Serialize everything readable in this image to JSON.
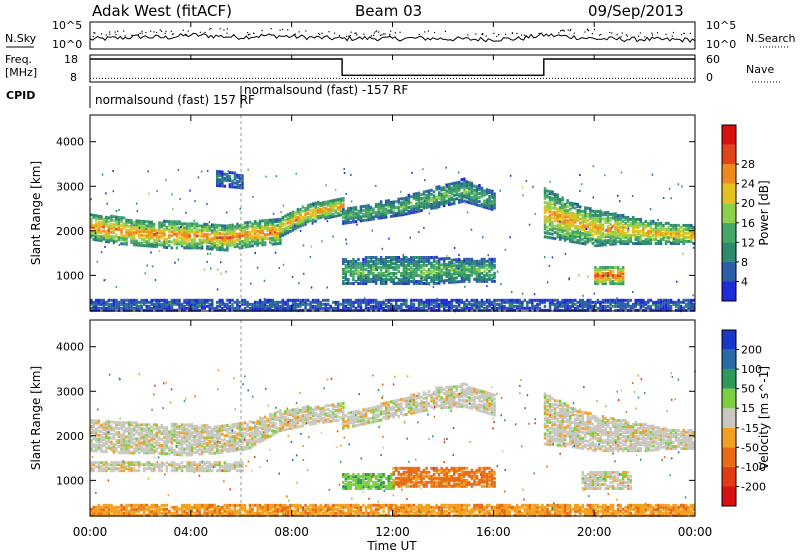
{
  "header": {
    "station": "Adak West (fitACF)",
    "beam": "Beam 03",
    "date": "09/Sep/2013"
  },
  "noise_panel": {
    "left_label": "N.Sky",
    "right_label": "N.Search",
    "left_ticks": [
      "10^5",
      "10^0"
    ],
    "right_ticks": [
      "10^5",
      "10^0"
    ]
  },
  "freq_panel": {
    "left_label_1": "Freq.",
    "left_label_2": "[MHz]",
    "left_ticks": [
      "18",
      "8"
    ],
    "right_label": "Nave",
    "right_ticks": [
      "60",
      "0"
    ]
  },
  "cpid": {
    "label": "CPID",
    "mode_1": "normalsound (fast) 157 RF",
    "mode_2": "normalsound (fast) -157 RF"
  },
  "colors": {
    "power": [
      "#1f2bd8",
      "#2a5fa8",
      "#2d8a6a",
      "#46a867",
      "#8fd04a",
      "#e6c020",
      "#f08a1c",
      "#e0441a",
      "#d81010"
    ],
    "velocity": [
      "#1838c8",
      "#2a6aa8",
      "#2e9a5a",
      "#7cd040",
      "#c8c8c0",
      "#f2a020",
      "#e86a14",
      "#e23a14",
      "#d81010"
    ],
    "noise_line": "#000000"
  },
  "chart_data": [
    {
      "type": "line",
      "title": "N.Sky / N.Search",
      "x_range_hours": [
        0,
        24
      ],
      "ylim_log10": [
        0,
        5
      ],
      "n_sky_log10": [
        [
          0,
          1.8
        ],
        [
          1,
          2.0
        ],
        [
          2,
          2.3
        ],
        [
          3,
          2.1
        ],
        [
          4,
          2.6
        ],
        [
          5,
          2.4
        ],
        [
          6,
          2.2
        ],
        [
          7,
          2.5
        ],
        [
          8,
          2.3
        ],
        [
          9,
          2.1
        ],
        [
          10,
          1.9
        ],
        [
          11,
          2.0
        ],
        [
          12,
          1.9
        ],
        [
          13,
          2.0
        ],
        [
          14,
          1.9
        ],
        [
          15,
          1.8
        ],
        [
          16,
          1.8
        ],
        [
          17,
          1.9
        ],
        [
          18,
          2.6
        ],
        [
          19,
          2.3
        ],
        [
          20,
          1.9
        ],
        [
          21,
          1.8
        ],
        [
          22,
          1.8
        ],
        [
          23,
          1.7
        ],
        [
          24,
          1.7
        ]
      ]
    },
    {
      "type": "line",
      "title": "Freq. / Nave",
      "x_range_hours": [
        0,
        24
      ],
      "ylim_freq": [
        8,
        18
      ],
      "ylim_nave": [
        0,
        60
      ],
      "freq_segments": [
        {
          "start": 0,
          "end": 10,
          "mhz": 16.5
        },
        {
          "start": 10,
          "end": 18,
          "mhz": 10.5
        },
        {
          "start": 18,
          "end": 24,
          "mhz": 16.5
        }
      ],
      "nave_level": 8,
      "cpid_switch_hours": [
        0,
        6
      ]
    },
    {
      "type": "heatmap",
      "quantity": "power",
      "xlabel": "",
      "ylabel": "Slant Range [km]",
      "x_range_hours": [
        0,
        24
      ],
      "ylim": [
        200,
        4600
      ],
      "yticks": [
        1000,
        2000,
        3000,
        4000
      ],
      "colorbar": {
        "label": "Power [dB]",
        "ticks": [
          "4",
          "8",
          "12",
          "16",
          "20",
          "24",
          "28"
        ],
        "range": [
          0,
          32
        ]
      },
      "regions": [
        {
          "t0": 0.0,
          "t1": 7.5,
          "r_top": [
            2400,
            2350,
            2250,
            2250,
            2200,
            2150,
            2250,
            2300
          ],
          "r_bot": [
            1850,
            1750,
            1700,
            1650,
            1650,
            1600,
            1700,
            1750
          ],
          "peak_db": 24
        },
        {
          "t0": 7.5,
          "t1": 10.0,
          "r_top": [
            2300,
            2600,
            2700,
            2800
          ],
          "r_bot": [
            1900,
            2150,
            2300,
            2400
          ],
          "peak_db": 22
        },
        {
          "t0": 10.0,
          "t1": 16.0,
          "r_top": [
            2550,
            2650,
            2800,
            3000,
            3200,
            2900
          ],
          "r_bot": [
            2200,
            2300,
            2400,
            2550,
            2700,
            2500
          ],
          "peak_db": 14
        },
        {
          "t0": 10.0,
          "t1": 16.0,
          "r_top": [
            1400,
            1450,
            1450,
            1450,
            1400,
            1400
          ],
          "r_bot": [
            850,
            850,
            850,
            850,
            900,
            900
          ],
          "peak_db": 14
        },
        {
          "t0": 5.0,
          "t1": 6.0,
          "r_top": [
            3400,
            3300
          ],
          "r_bot": [
            3050,
            3000
          ],
          "peak_db": 8
        },
        {
          "t0": 18.0,
          "t1": 24.0,
          "r_top": [
            3000,
            2700,
            2500,
            2400,
            2300,
            2200,
            2150
          ],
          "r_bot": [
            1900,
            1800,
            1700,
            1750,
            1750,
            1750,
            1750
          ],
          "peak_db": 22
        },
        {
          "t0": 20.0,
          "t1": 21.2,
          "r_top": [
            1250,
            1250
          ],
          "r_bot": [
            850,
            850
          ],
          "peak_db": 28
        },
        {
          "t0": 0.0,
          "t1": 24.0,
          "r_top": [
            500,
            500
          ],
          "r_bot": [
            250,
            250
          ],
          "peak_db": 6
        }
      ]
    },
    {
      "type": "heatmap",
      "quantity": "velocity",
      "xlabel": "Time UT",
      "ylabel": "Slant Range [km]",
      "x_range_hours": [
        0,
        24
      ],
      "xticks": [
        "00:00",
        "04:00",
        "08:00",
        "12:00",
        "16:00",
        "20:00",
        "00:00"
      ],
      "ylim": [
        200,
        4600
      ],
      "yticks": [
        1000,
        2000,
        3000,
        4000
      ],
      "colorbar": {
        "label": "Velocity [m s^-1]",
        "ticks": [
          "200",
          "100",
          "50",
          "15",
          "-15",
          "-50",
          "-100",
          "-200"
        ],
        "range": [
          -250,
          250
        ]
      },
      "regions": [
        {
          "t0": 0.0,
          "t1": 10.0,
          "r_top": [
            2400,
            2350,
            2300,
            2300,
            2250,
            2350,
            2600,
            2700,
            2800
          ],
          "r_bot": [
            1700,
            1650,
            1650,
            1600,
            1650,
            1750,
            2150,
            2300,
            2400
          ],
          "vel": 0
        },
        {
          "t0": 10.0,
          "t1": 16.0,
          "r_top": [
            2550,
            2700,
            2900,
            3100,
            3200,
            2950
          ],
          "r_bot": [
            2200,
            2350,
            2500,
            2650,
            2700,
            2500
          ],
          "vel": 0
        },
        {
          "t0": 10.0,
          "t1": 12.0,
          "r_top": [
            1200,
            1200,
            1200
          ],
          "r_bot": [
            850,
            850,
            850
          ],
          "vel": 40
        },
        {
          "t0": 12.0,
          "t1": 16.0,
          "r_top": [
            1350,
            1350,
            1350,
            1300
          ],
          "r_bot": [
            900,
            900,
            900,
            900
          ],
          "vel": -60
        },
        {
          "t0": 0.0,
          "t1": 6.0,
          "r_top": [
            1450,
            1450,
            1450
          ],
          "r_bot": [
            1250,
            1250,
            1250
          ],
          "vel": 0
        },
        {
          "t0": 18.0,
          "t1": 24.0,
          "r_top": [
            3000,
            2700,
            2500,
            2400,
            2300,
            2200,
            2150
          ],
          "r_bot": [
            1850,
            1800,
            1700,
            1700,
            1700,
            1750,
            1750
          ],
          "vel": 0
        },
        {
          "t0": 19.5,
          "t1": 21.5,
          "r_top": [
            1250,
            1250
          ],
          "r_bot": [
            850,
            850
          ],
          "vel": 0
        },
        {
          "t0": 0.0,
          "t1": 24.0,
          "r_top": [
            500,
            500
          ],
          "r_bot": [
            250,
            250
          ],
          "vel": -40
        }
      ]
    }
  ]
}
